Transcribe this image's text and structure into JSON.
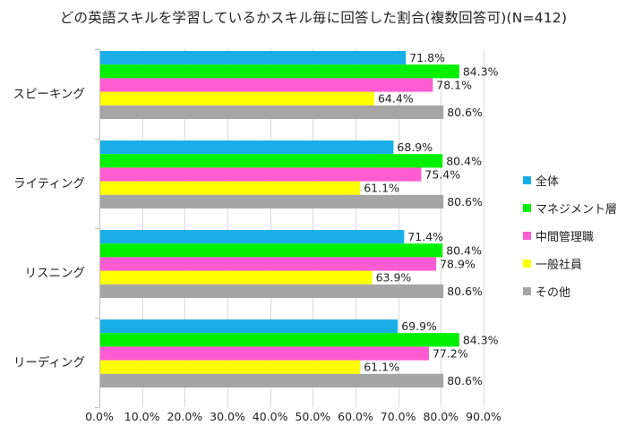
{
  "chart_data": {
    "type": "bar",
    "orientation": "horizontal",
    "title": "どの英語スキルを学習しているかスキル毎に回答した割合(複数回答可)(N=412)",
    "categories": [
      "スピーキング",
      "ライティング",
      "リスニング",
      "リーディング"
    ],
    "series": [
      {
        "name": "全体",
        "color": "#1aaee8",
        "values": [
          71.8,
          68.9,
          71.4,
          69.9
        ]
      },
      {
        "name": "マネジメント層",
        "color": "#00f000",
        "values": [
          84.3,
          80.4,
          80.4,
          84.3
        ]
      },
      {
        "name": "中間管理職",
        "color": "#ff5bd2",
        "values": [
          78.1,
          75.4,
          78.9,
          77.2
        ]
      },
      {
        "name": "一般社員",
        "color": "#ffff00",
        "values": [
          64.4,
          61.1,
          63.9,
          61.1
        ]
      },
      {
        "name": "その他",
        "color": "#a5a5a5",
        "values": [
          80.6,
          80.6,
          80.6,
          80.6
        ]
      }
    ],
    "value_labels": [
      [
        "71.8%",
        "84.3%",
        "78.1%",
        "64.4%",
        "80.6%"
      ],
      [
        "68.9%",
        "80.4%",
        "75.4%",
        "61.1%",
        "80.6%"
      ],
      [
        "71.4%",
        "80.4%",
        "78.9%",
        "63.9%",
        "80.6%"
      ],
      [
        "69.9%",
        "84.3%",
        "77.2%",
        "61.1%",
        "80.6%"
      ]
    ],
    "xticks": [
      "0.0%",
      "10.0%",
      "20.0%",
      "30.0%",
      "40.0%",
      "50.0%",
      "60.0%",
      "70.0%",
      "80.0%",
      "90.0%"
    ],
    "xlim": [
      0,
      90
    ],
    "legend_position": "right",
    "grid": "vertical"
  }
}
